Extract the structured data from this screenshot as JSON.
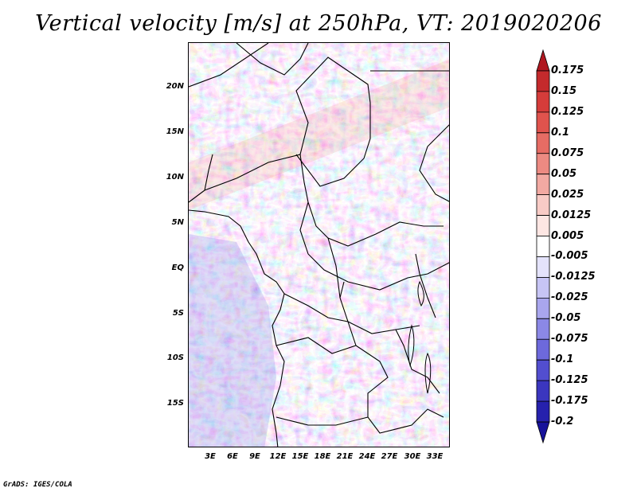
{
  "title": "Vertical velocity [m/s] at 250hPa, VT: 2019020206",
  "footer": "GrADS: IGES/COLA",
  "map": {
    "variable": "Vertical velocity",
    "level": "250hPa",
    "valid_time": "2019020206",
    "lat_labels": [
      "20N",
      "15N",
      "10N",
      "5N",
      "EQ",
      "5S",
      "10S",
      "15S"
    ],
    "lon_labels": [
      "3E",
      "6E",
      "9E",
      "12E",
      "15E",
      "18E",
      "21E",
      "24E",
      "27E",
      "30E",
      "33E"
    ]
  },
  "colorbar": {
    "labels": [
      "0.175",
      "0.15",
      "0.125",
      "0.1",
      "0.075",
      "0.05",
      "0.025",
      "0.0125",
      "0.005",
      "-0.005",
      "-0.0125",
      "-0.025",
      "-0.05",
      "-0.075",
      "-0.1",
      "-0.125",
      "-0.175",
      "-0.2"
    ],
    "colors": [
      "#b01820",
      "#c42a2c",
      "#d53c3a",
      "#e0534d",
      "#e66c64",
      "#ec8a82",
      "#f2a9a2",
      "#f8cbc6",
      "#fde6e3",
      "#ffffff",
      "#e4e3fb",
      "#c7c5f5",
      "#a9a6ee",
      "#8b88e6",
      "#6d69dc",
      "#524ecf",
      "#3b36bf",
      "#2621ad",
      "#17129a"
    ]
  }
}
